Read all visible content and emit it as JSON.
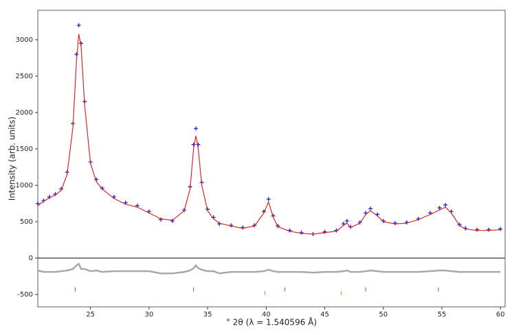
{
  "chart_data": {
    "type": "line",
    "x_label": "° 2θ (λ = 1.540596 Å)",
    "y_label": "Intensity (arb. units)",
    "x": [
      20.5,
      21,
      21.5,
      22,
      22.5,
      23,
      23.5,
      23.8,
      24.0,
      24.2,
      24.5,
      25,
      25.5,
      26,
      27,
      28,
      29,
      30,
      31,
      32,
      33,
      33.5,
      33.8,
      34.0,
      34.2,
      34.5,
      35,
      35.5,
      36,
      37,
      38,
      39,
      39.8,
      40.2,
      40.6,
      41,
      42,
      43,
      44,
      45,
      46,
      46.6,
      46.9,
      47.2,
      48,
      48.5,
      48.9,
      49.5,
      50,
      51,
      52,
      53,
      54,
      54.8,
      55.3,
      55.8,
      56.5,
      57,
      58,
      59,
      60
    ],
    "series": [
      {
        "color": "#1f1fd0",
        "marker": "+",
        "values": [
          750,
          790,
          840,
          880,
          950,
          1180,
          1850,
          2800,
          3200,
          2950,
          2150,
          1320,
          1080,
          960,
          840,
          760,
          720,
          640,
          530,
          510,
          660,
          980,
          1560,
          1780,
          1560,
          1040,
          670,
          560,
          470,
          450,
          420,
          450,
          640,
          810,
          580,
          440,
          380,
          350,
          330,
          360,
          380,
          470,
          510,
          430,
          490,
          620,
          680,
          600,
          510,
          480,
          490,
          540,
          620,
          690,
          730,
          640,
          460,
          410,
          390,
          390,
          400
        ]
      },
      {
        "color": "#d62728",
        "values": [
          720,
          780,
          830,
          870,
          930,
          1150,
          1800,
          2700,
          3080,
          2900,
          2100,
          1300,
          1050,
          950,
          820,
          740,
          700,
          620,
          540,
          520,
          650,
          950,
          1500,
          1680,
          1500,
          1000,
          650,
          540,
          480,
          440,
          410,
          440,
          620,
          770,
          560,
          430,
          370,
          340,
          330,
          350,
          370,
          450,
          480,
          420,
          480,
          600,
          650,
          580,
          500,
          470,
          480,
          530,
          600,
          660,
          700,
          620,
          450,
          400,
          380,
          380,
          390
        ]
      },
      {
        "color": "#a8a8a8",
        "values": [
          -170,
          -190,
          -190,
          -190,
          -180,
          -170,
          -150,
          -100,
          -80,
          -150,
          -150,
          -180,
          -170,
          -190,
          -180,
          -180,
          -180,
          -180,
          -210,
          -210,
          -190,
          -170,
          -140,
          -100,
          -140,
          -160,
          -180,
          -180,
          -210,
          -190,
          -190,
          -190,
          -180,
          -160,
          -180,
          -190,
          -190,
          -190,
          -200,
          -190,
          -190,
          -180,
          -170,
          -190,
          -190,
          -180,
          -170,
          -180,
          -190,
          -190,
          -190,
          -190,
          -180,
          -170,
          -170,
          -180,
          -190,
          -190,
          -190,
          -190,
          -190
        ]
      }
    ],
    "reflections": [
      {
        "color": "#1f77b4",
        "x": [
          23.7,
          33.8,
          41.6,
          48.5,
          54.7
        ],
        "y": -430
      },
      {
        "color": "#ff7f0e",
        "x": [
          39.9,
          46.4
        ],
        "y": -480
      }
    ],
    "baseline": 0,
    "xlim": [
      20.5,
      60.4
    ],
    "ylim": [
      -670,
      3405
    ],
    "xticks": [
      25,
      30,
      35,
      40,
      45,
      50,
      55,
      60
    ],
    "yticks": [
      -500,
      0,
      500,
      1000,
      1500,
      2000,
      2500,
      3000
    ]
  }
}
